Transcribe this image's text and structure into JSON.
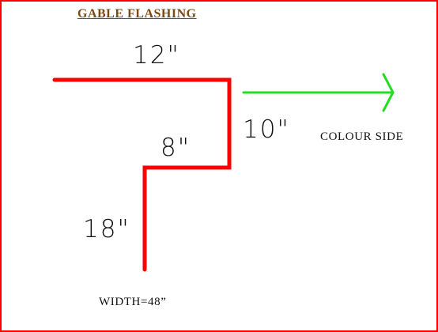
{
  "title": "GABLE FLASHING",
  "dimensions": {
    "top": "12\"",
    "right": "10\"",
    "step": "8\"",
    "bottom": "18\""
  },
  "colour_side_label": "COLOUR SIDE",
  "width_label": "WIDTH=48”",
  "colors": {
    "flashing": "#ff0000",
    "arrow": "#22dd22",
    "border": "#ff0000",
    "title": "#7a4a12"
  }
}
